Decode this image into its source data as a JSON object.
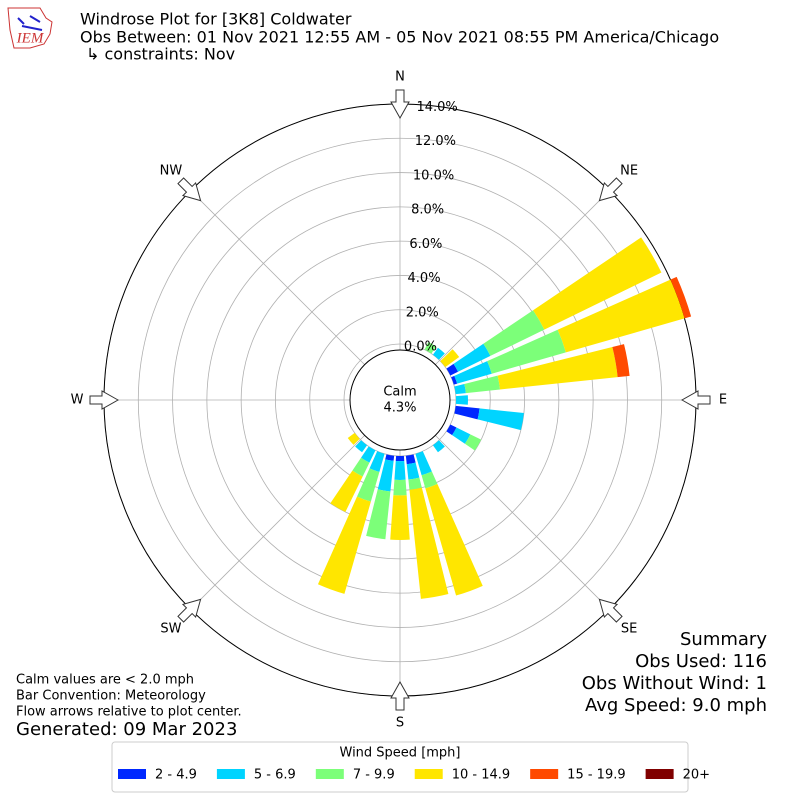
{
  "logo": "IEM",
  "chart_data": {
    "type": "windrose",
    "title": "Windrose Plot for [3K8] Coldwater",
    "subtitle": "Obs Between: 01 Nov 2021 12:55 AM - 05 Nov 2021 08:55 PM America/Chicago",
    "subtitle2": "↳ constraints: Nov",
    "compass": [
      "N",
      "NE",
      "E",
      "SE",
      "S",
      "SW",
      "W",
      "NW"
    ],
    "calm_label": "Calm",
    "calm": "4.3%",
    "x": [
      30,
      40,
      50,
      60,
      70,
      80,
      90,
      100,
      120,
      140,
      160,
      170,
      180,
      190,
      200,
      210,
      220,
      230
    ],
    "series": [
      {
        "name": "2 - 4.9",
        "color": "#0028ff",
        "values": [
          0,
          0,
          0,
          0.5,
          0.2,
          0,
          0,
          1.4,
          0.4,
          0,
          0,
          0.5,
          0.3,
          0.3,
          0,
          0,
          0,
          0
        ]
      },
      {
        "name": "5 - 6.9",
        "color": "#00d4ff",
        "values": [
          0,
          0.5,
          0,
          2.1,
          2.1,
          0.6,
          0.7,
          2.6,
          0.9,
          0.5,
          1.3,
          0.9,
          1.1,
          1.8,
          1.1,
          0.8,
          0.5,
          0
        ]
      },
      {
        "name": "7 - 9.9",
        "color": "#7cff79",
        "values": [
          0.5,
          0,
          0,
          3.5,
          4.5,
          2.0,
          0,
          0,
          0.7,
          0,
          0.8,
          0.6,
          0.9,
          2.8,
          1.8,
          0.9,
          0,
          0
        ]
      },
      {
        "name": "10 - 14.9",
        "color": "#ffe600",
        "values": [
          0,
          0,
          1.0,
          7.6,
          7.2,
          6.9,
          0,
          0,
          0,
          0,
          6.5,
          6.4,
          2.6,
          0,
          5.6,
          2.3,
          0,
          0.5
        ]
      },
      {
        "name": "15 - 19.9",
        "color": "#ff4a00",
        "values": [
          0,
          0,
          0,
          0,
          0.4,
          0.7,
          0,
          0,
          0,
          0,
          0,
          0,
          0,
          0,
          0,
          0,
          0,
          0
        ]
      },
      {
        "name": "20+",
        "color": "#800000",
        "values": [
          0,
          0,
          0,
          0,
          0,
          0,
          0,
          0,
          0,
          0,
          0,
          0,
          0,
          0,
          0,
          0,
          0,
          0
        ]
      }
    ],
    "ylim": [
      0,
      14
    ],
    "yticks": [
      {
        "value": 0,
        "label": "0.0%"
      },
      {
        "value": 2,
        "label": "2.0%"
      },
      {
        "value": 4,
        "label": "4.0%"
      },
      {
        "value": 6,
        "label": "6.0%"
      },
      {
        "value": 8,
        "label": "8.0%"
      },
      {
        "value": 10,
        "label": "10.0%"
      },
      {
        "value": 12,
        "label": "12.0%"
      },
      {
        "value": 14,
        "label": "14.0%"
      }
    ],
    "grid": true,
    "legend_title": "Wind Speed [mph]",
    "notes": [
      "Calm values are < 2.0 mph",
      "Bar Convention: Meteorology",
      "Flow arrows relative to plot center."
    ],
    "generated": "Generated: 09 Mar 2023",
    "summary": [
      "Summary",
      "Obs Used: 116",
      "Obs Without Wind: 1",
      "Avg Speed: 9.0 mph"
    ]
  }
}
